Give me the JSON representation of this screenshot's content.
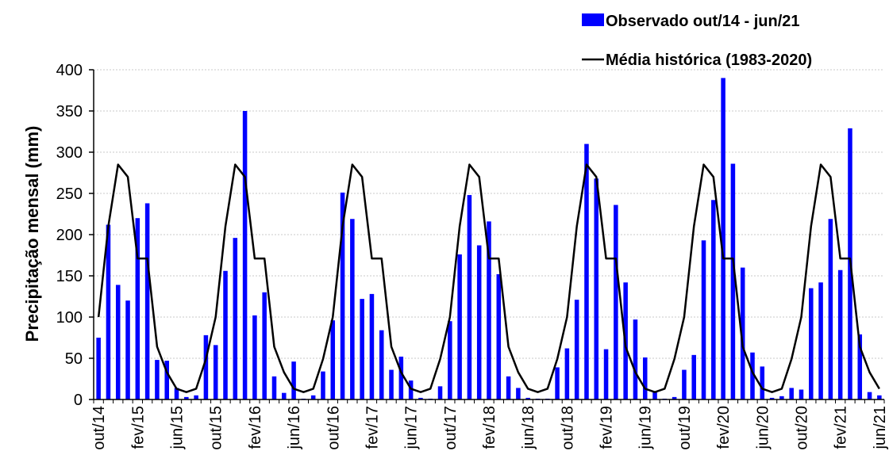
{
  "chart_data": {
    "type": "bar",
    "title": "",
    "ylabel": "Precipitação  mensal (mm)",
    "xlabel": "",
    "ylim": [
      0,
      400
    ],
    "yticks": [
      0,
      50,
      100,
      150,
      200,
      250,
      300,
      350,
      400
    ],
    "grid": "horizontal",
    "legend_position": "top-right",
    "categories": [
      "out/14",
      "nov/14",
      "dez/14",
      "jan/15",
      "fev/15",
      "mar/15",
      "abr/15",
      "mai/15",
      "jun/15",
      "jul/15",
      "ago/15",
      "set/15",
      "out/15",
      "nov/15",
      "dez/15",
      "jan/16",
      "fev/16",
      "mar/16",
      "abr/16",
      "mai/16",
      "jun/16",
      "jul/16",
      "ago/16",
      "set/16",
      "out/16",
      "nov/16",
      "dez/16",
      "jan/17",
      "fev/17",
      "mar/17",
      "abr/17",
      "mai/17",
      "jun/17",
      "jul/17",
      "ago/17",
      "set/17",
      "out/17",
      "nov/17",
      "dez/17",
      "jan/18",
      "fev/18",
      "mar/18",
      "abr/18",
      "mai/18",
      "jun/18",
      "jul/18",
      "ago/18",
      "set/18",
      "out/18",
      "nov/18",
      "dez/18",
      "jan/19",
      "fev/19",
      "mar/19",
      "abr/19",
      "mai/19",
      "jun/19",
      "jul/19",
      "ago/19",
      "set/19",
      "out/19",
      "nov/19",
      "dez/19",
      "jan/20",
      "fev/20",
      "mar/20",
      "abr/20",
      "mai/20",
      "jun/20",
      "jul/20",
      "ago/20",
      "set/20",
      "out/20",
      "nov/20",
      "dez/20",
      "jan/21",
      "fev/21",
      "mar/21",
      "abr/21",
      "mai/21",
      "jun/21"
    ],
    "xtick_labels": [
      "out/14",
      "fev/15",
      "jun/15",
      "out/15",
      "fev/16",
      "jun/16",
      "out/16",
      "fev/17",
      "jun/17",
      "out/17",
      "fev/18",
      "jun/18",
      "out/18",
      "fev/19",
      "jun/19",
      "out/19",
      "fev/20",
      "jun/20",
      "out/20",
      "fev/21",
      "jun/21"
    ],
    "series": [
      {
        "name": "Observado out/14 - jun/21",
        "type": "bar",
        "color": "#0000ff",
        "values": [
          75,
          212,
          139,
          120,
          220,
          238,
          48,
          47,
          14,
          3,
          5,
          78,
          66,
          156,
          196,
          350,
          102,
          130,
          28,
          8,
          46,
          1,
          5,
          34,
          96,
          251,
          219,
          122,
          128,
          84,
          36,
          52,
          23,
          2,
          1,
          16,
          95,
          176,
          248,
          187,
          216,
          152,
          28,
          14,
          2,
          1,
          1,
          39,
          62,
          121,
          310,
          268,
          61,
          236,
          142,
          97,
          51,
          9,
          1,
          3,
          36,
          54,
          193,
          242,
          390,
          286,
          160,
          57,
          40,
          2,
          4,
          14,
          12,
          135,
          142,
          219,
          157,
          329,
          79,
          9,
          5
        ]
      },
      {
        "name": "Média histórica (1983-2020)",
        "type": "line",
        "color": "#000000",
        "values": [
          100,
          210,
          285,
          270,
          171,
          171,
          64,
          33,
          13,
          9,
          13,
          49,
          100,
          210,
          285,
          270,
          171,
          171,
          64,
          33,
          13,
          9,
          13,
          49,
          100,
          210,
          285,
          270,
          171,
          171,
          64,
          33,
          13,
          9,
          13,
          49,
          100,
          210,
          285,
          270,
          171,
          171,
          64,
          33,
          13,
          9,
          13,
          49,
          100,
          210,
          285,
          270,
          171,
          171,
          64,
          33,
          13,
          9,
          13,
          49,
          100,
          210,
          285,
          270,
          171,
          171,
          64,
          33,
          13,
          9,
          13,
          49,
          100,
          210,
          285,
          270,
          171,
          171,
          64,
          33,
          13
        ]
      }
    ]
  }
}
